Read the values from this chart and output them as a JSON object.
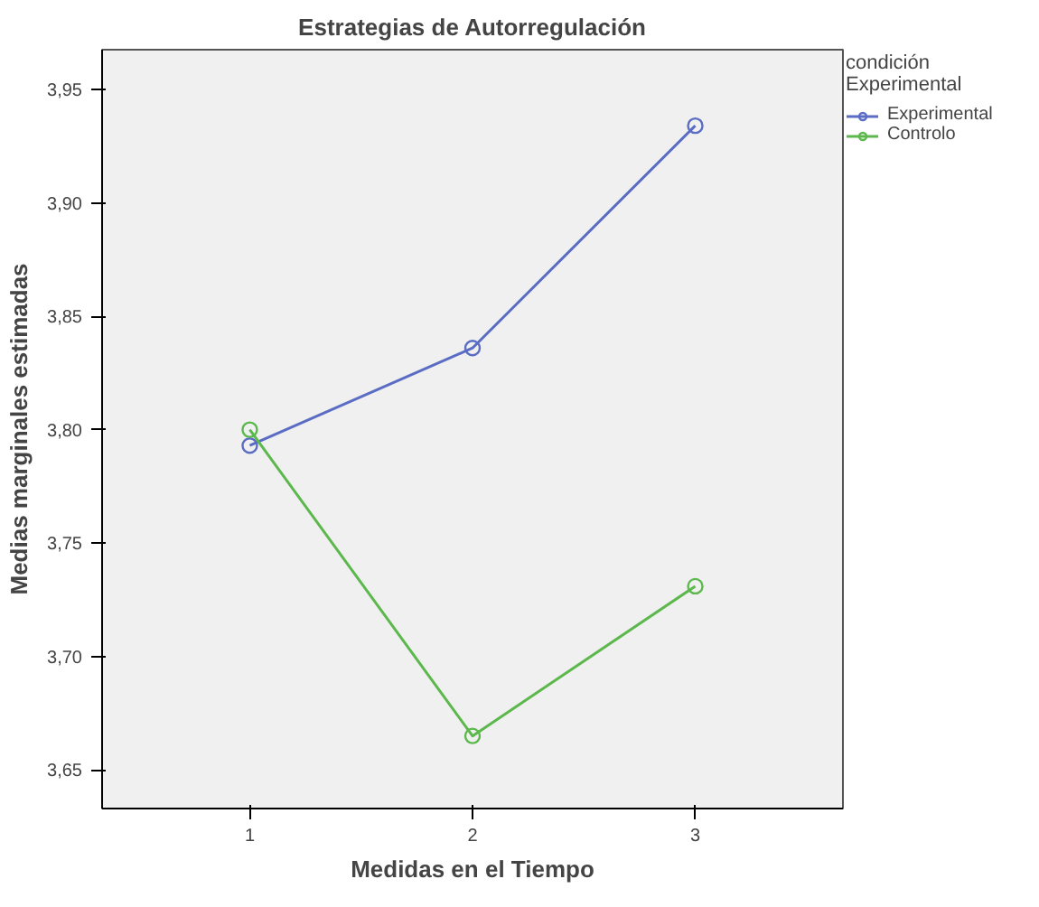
{
  "chart_data": {
    "type": "line",
    "title": "Estrategias de Autorregulación",
    "xlabel": "Medidas en el Tiempo",
    "ylabel": "Medias marginales estimadas",
    "legend_title": "condición Experimental",
    "categories": [
      "1",
      "2",
      "3"
    ],
    "series": [
      {
        "name": "Experimental",
        "color": "#5a6cc4",
        "values": [
          3.793,
          3.836,
          3.934
        ]
      },
      {
        "name": "Controlo",
        "color": "#5cb84c",
        "values": [
          3.8,
          3.665,
          3.731
        ]
      }
    ],
    "ylim": [
      3.633,
      3.9675
    ],
    "yticks": [
      {
        "value": 3.65,
        "label": "3,65"
      },
      {
        "value": 3.7,
        "label": "3,70"
      },
      {
        "value": 3.75,
        "label": "3,75"
      },
      {
        "value": 3.8,
        "label": "3,80"
      },
      {
        "value": 3.85,
        "label": "3,85"
      },
      {
        "value": 3.9,
        "label": "3,90"
      },
      {
        "value": 3.95,
        "label": "3,95"
      }
    ],
    "marker": "circle",
    "line_style": "solid",
    "legend": "top right",
    "grid": false
  }
}
